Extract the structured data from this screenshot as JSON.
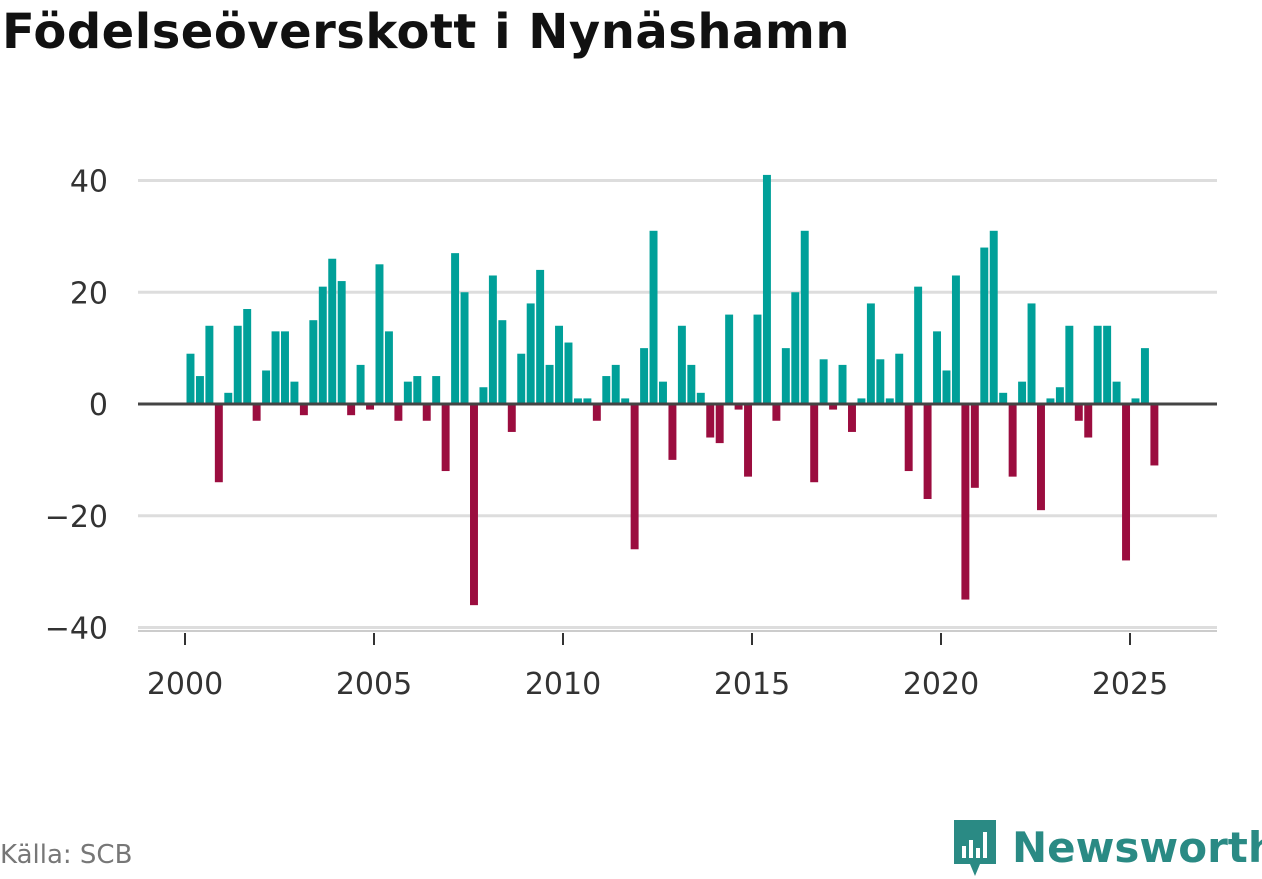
{
  "title": "Födelseöverskott i Nynäshamn",
  "source": "Källa: SCB",
  "brand": "Newsworthy",
  "brand_icon": "newsworthy-logo-icon",
  "colors": {
    "positive": "#00a099",
    "negative": "#9b0d3f",
    "grid": "#dddddd",
    "zero": "#444444",
    "brand": "#2a8a84"
  },
  "chart_data": {
    "type": "bar",
    "title": "Födelseöverskott i Nynäshamn",
    "xlabel": "",
    "ylabel": "",
    "ylim": [
      -42,
      44
    ],
    "xlim": [
      1999.9,
      2027.3
    ],
    "yticks": [
      40,
      20,
      0,
      -20,
      -40
    ],
    "ytick_labels": [
      "40",
      "20",
      "0",
      "−20",
      "−40"
    ],
    "xticks": [
      2000,
      2005,
      2010,
      2015,
      2020,
      2025
    ],
    "xtick_labels": [
      "2000",
      "2005",
      "2010",
      "2015",
      "2020",
      "2025"
    ],
    "start_year": 2000,
    "periods_per_year": 4,
    "values": [
      9,
      5,
      14,
      -14,
      2,
      14,
      17,
      -3,
      6,
      13,
      13,
      4,
      -2,
      15,
      21,
      26,
      22,
      -2,
      7,
      -1,
      25,
      13,
      -3,
      4,
      5,
      -3,
      5,
      -12,
      27,
      20,
      -36,
      3,
      23,
      15,
      -5,
      9,
      18,
      24,
      7,
      14,
      11,
      1,
      1,
      -3,
      5,
      7,
      1,
      -26,
      10,
      31,
      4,
      -10,
      14,
      7,
      2,
      -6,
      -7,
      16,
      -1,
      -13,
      16,
      41,
      -3,
      10,
      20,
      31,
      -14,
      8,
      -1,
      7,
      -5,
      1,
      18,
      8,
      1,
      9,
      -12,
      21,
      -17,
      13,
      6,
      23,
      -35,
      -15,
      28,
      31,
      2,
      -13,
      4,
      18,
      -19,
      1,
      3,
      14,
      -3,
      -6,
      14,
      14,
      4,
      -28,
      1,
      10,
      -11
    ]
  }
}
